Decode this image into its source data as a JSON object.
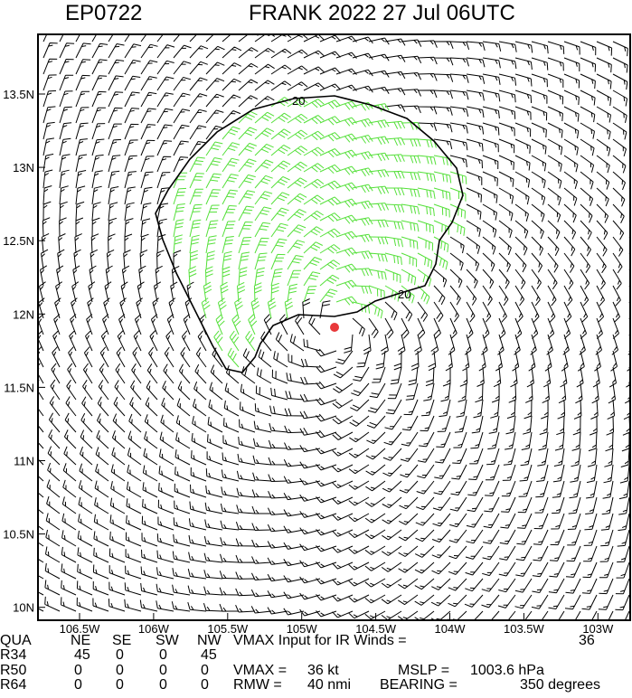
{
  "header": {
    "storm_id": "EP0722",
    "title": "FRANK 2022 27 Jul 06UTC"
  },
  "map": {
    "lat_labels": [
      "13.5N",
      "13N",
      "12.5N",
      "12N",
      "11.5N",
      "11N",
      "10.5N",
      "10N"
    ],
    "lon_labels": [
      "106.5W",
      "106W",
      "105.5W",
      "105W",
      "104.5W",
      "104W",
      "103.5W",
      "103W"
    ],
    "contour_labels": [
      "20",
      "20"
    ]
  },
  "table": {
    "columns": [
      "QUA",
      "NE",
      "SE",
      "SW",
      "NW"
    ],
    "rows": [
      [
        "R34",
        "45",
        "0",
        "0",
        "45"
      ],
      [
        "R50",
        "0",
        "0",
        "0",
        "0"
      ],
      [
        "R64",
        "0",
        "0",
        "0",
        "0"
      ]
    ]
  },
  "info": {
    "ir_label": "VMAX Input for IR Winds =",
    "ir_value": "36",
    "vmax_label": "VMAX =",
    "vmax_value": "36 kt",
    "mslp_label": "MSLP =",
    "mslp_value": "1003.6 hPa",
    "rmw_label": "RMW =",
    "rmw_value": "40 nmi",
    "bearing_label": "BEARING =",
    "bearing_value": "350 degrees"
  }
}
